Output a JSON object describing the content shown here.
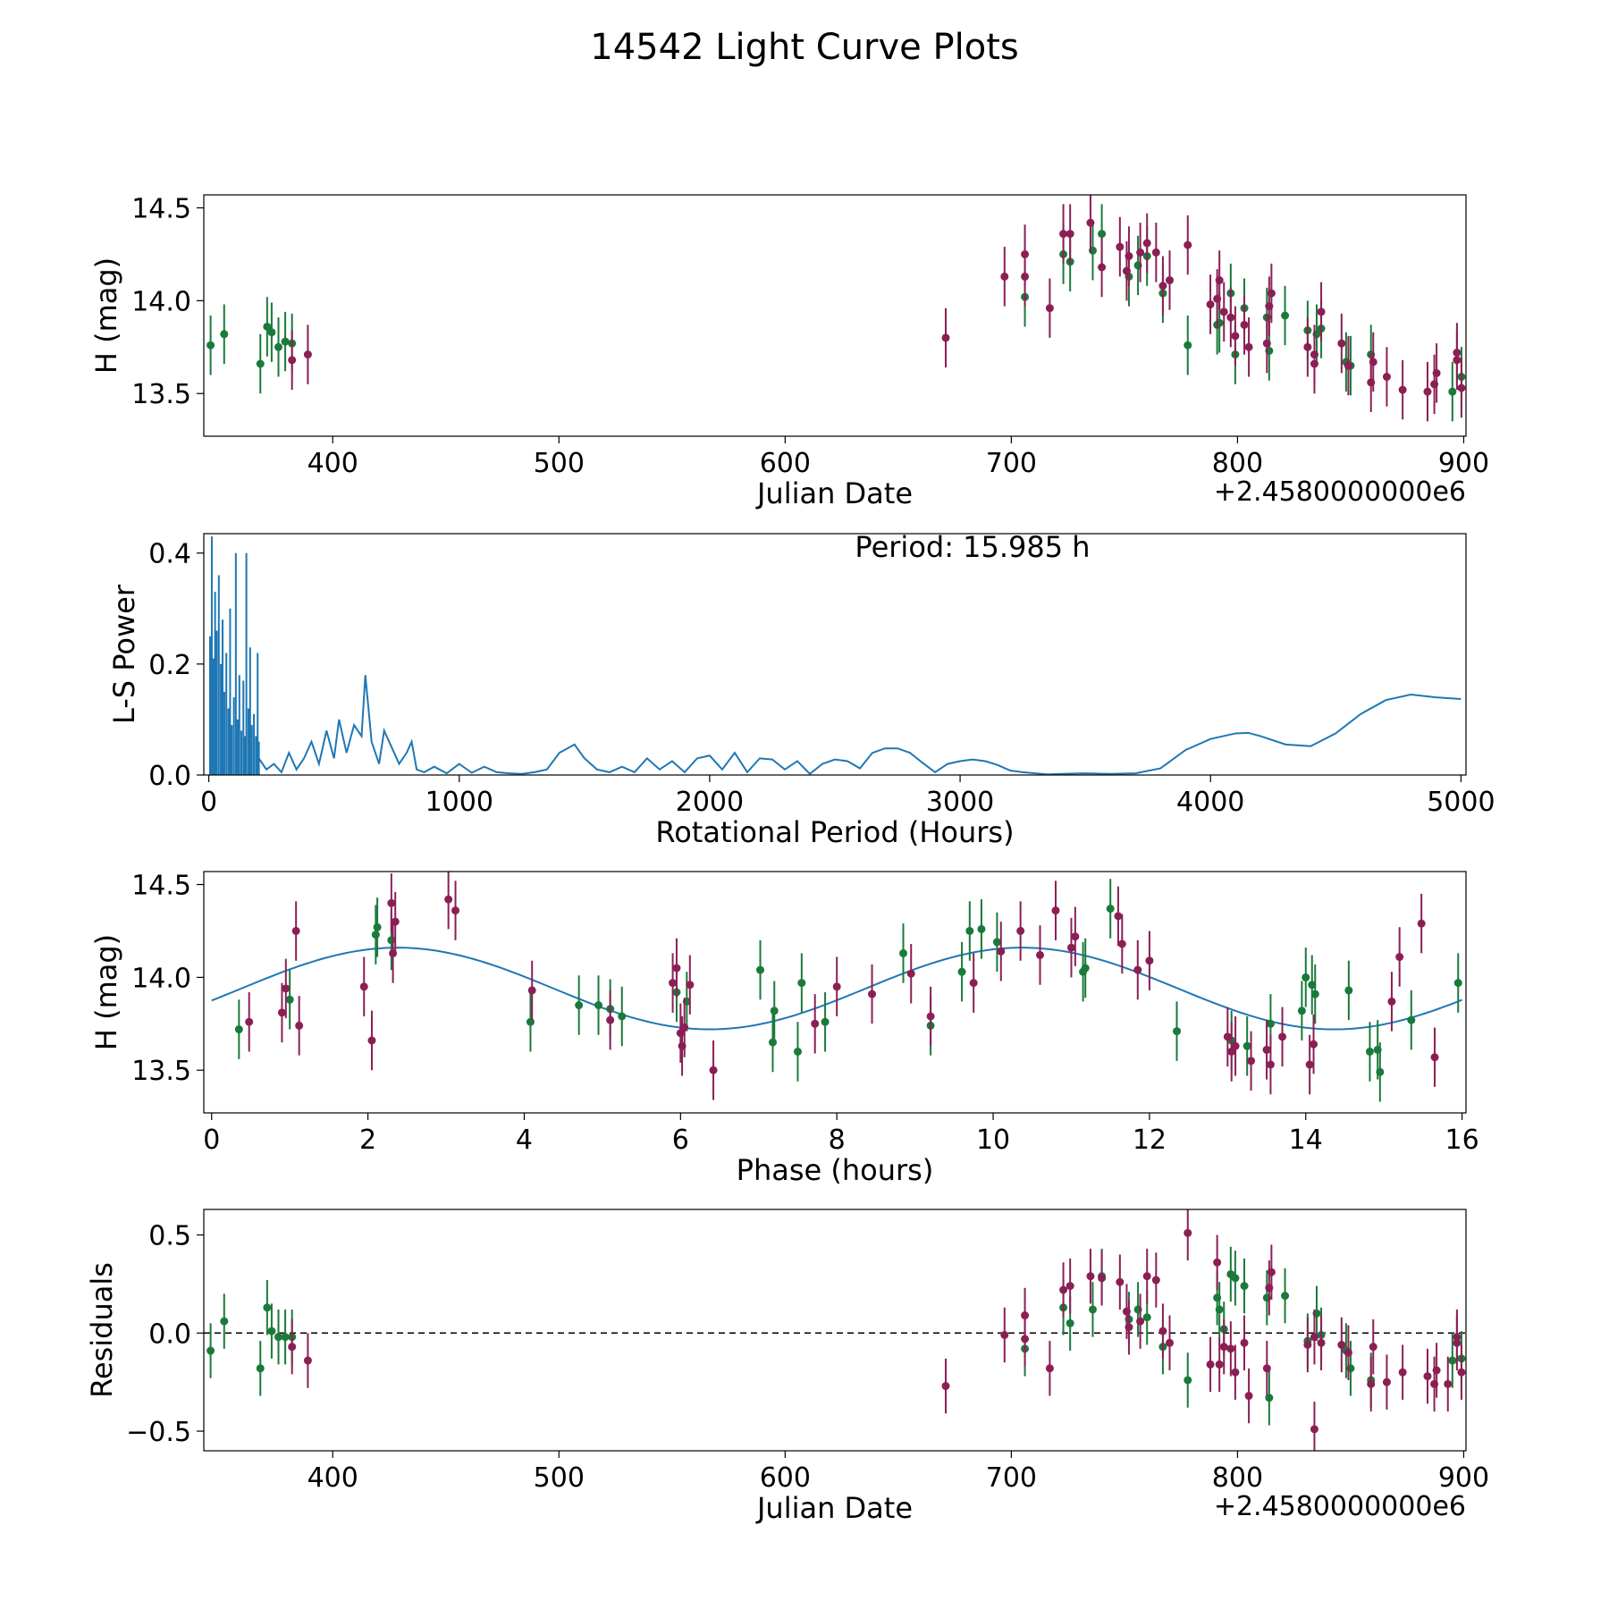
{
  "figure": {
    "title": "14542 Light Curve Plots",
    "colors": {
      "green": "#1a7a3a",
      "purple": "#8b1f55",
      "line": "#1f77b4",
      "axis": "#000000"
    }
  },
  "chart_data": [
    {
      "id": "lightcurve",
      "type": "scatter",
      "xlabel": "Julian Date",
      "ylabel": "H (mag)",
      "offset_text": "+2.4580000000e6",
      "xlim": [
        343,
        901
      ],
      "ylim": [
        13.27,
        14.57
      ],
      "xticks": [
        400,
        500,
        600,
        700,
        800,
        900
      ],
      "yticks": [
        13.5,
        14.0,
        14.5
      ],
      "ytick_labels": [
        "13.5",
        "14.0",
        "14.5"
      ],
      "error": 0.16,
      "series": [
        {
          "name": "green",
          "color": "#1a7a3a",
          "x": [
            346,
            352,
            368,
            371,
            373,
            376,
            379,
            382,
            706,
            723,
            726,
            736,
            740,
            752,
            756,
            760,
            767,
            778,
            791,
            792,
            797,
            799,
            803,
            813,
            814,
            821,
            831,
            835,
            837,
            848,
            850,
            859,
            895,
            899
          ],
          "y": [
            13.76,
            13.82,
            13.66,
            13.86,
            13.83,
            13.75,
            13.78,
            13.77,
            14.02,
            14.25,
            14.21,
            14.27,
            14.36,
            14.13,
            14.19,
            14.24,
            14.04,
            13.76,
            13.87,
            13.88,
            14.04,
            13.71,
            13.96,
            13.91,
            13.73,
            13.92,
            13.84,
            13.82,
            13.85,
            13.67,
            13.65,
            13.71,
            13.51,
            13.59
          ]
        },
        {
          "name": "purple",
          "color": "#8b1f55",
          "x": [
            382,
            389,
            671,
            697,
            706,
            706,
            717,
            723,
            726,
            735,
            740,
            748,
            751,
            752,
            757,
            760,
            764,
            767,
            770,
            778,
            788,
            791,
            792,
            794,
            797,
            799,
            803,
            805,
            813,
            814,
            815,
            831,
            834,
            834,
            837,
            846,
            849,
            859,
            860,
            866,
            873,
            884,
            887,
            888,
            897,
            897,
            899
          ],
          "y": [
            13.68,
            13.71,
            13.8,
            14.13,
            14.13,
            14.25,
            13.96,
            14.36,
            14.36,
            14.42,
            14.18,
            14.29,
            14.16,
            14.24,
            14.26,
            14.31,
            14.26,
            14.08,
            14.11,
            14.3,
            13.98,
            14.01,
            14.11,
            13.94,
            13.91,
            13.81,
            13.87,
            13.75,
            13.77,
            13.97,
            14.04,
            13.75,
            13.66,
            13.71,
            13.94,
            13.77,
            13.65,
            13.56,
            13.67,
            13.59,
            13.52,
            13.51,
            13.55,
            13.61,
            13.68,
            13.72,
            13.53
          ]
        }
      ]
    },
    {
      "id": "periodogram",
      "type": "line",
      "xlabel": "Rotational Period (Hours)",
      "ylabel": "L-S Power",
      "annotation": "Period: 15.985 h",
      "xlim": [
        -20,
        5020
      ],
      "ylim": [
        0,
        0.435
      ],
      "xticks": [
        0,
        1000,
        2000,
        3000,
        4000,
        5000
      ],
      "yticks": [
        0.0,
        0.2,
        0.4
      ],
      "ytick_labels": [
        "0.0",
        "0.2",
        "0.4"
      ],
      "peak_x": [
        5,
        12,
        18,
        25,
        32,
        40,
        48,
        55,
        62,
        70,
        78,
        85,
        92,
        100,
        108,
        115,
        122,
        130,
        138,
        145,
        150,
        158,
        165,
        172,
        180,
        188,
        195,
        200
      ],
      "peak_y": [
        0.25,
        0.43,
        0.21,
        0.33,
        0.26,
        0.36,
        0.2,
        0.28,
        0.15,
        0.22,
        0.12,
        0.3,
        0.09,
        0.14,
        0.4,
        0.1,
        0.18,
        0.08,
        0.17,
        0.07,
        0.4,
        0.12,
        0.23,
        0.09,
        0.11,
        0.07,
        0.22,
        0.06
      ],
      "curve_x": [
        200,
        230,
        260,
        290,
        320,
        350,
        380,
        410,
        440,
        470,
        500,
        520,
        550,
        580,
        610,
        625,
        650,
        680,
        700,
        730,
        760,
        790,
        810,
        830,
        860,
        900,
        950,
        1000,
        1050,
        1100,
        1150,
        1200,
        1250,
        1300,
        1350,
        1400,
        1420,
        1460,
        1500,
        1550,
        1600,
        1650,
        1700,
        1750,
        1800,
        1850,
        1900,
        1950,
        2000,
        2050,
        2100,
        2150,
        2200,
        2250,
        2300,
        2350,
        2400,
        2450,
        2500,
        2550,
        2600,
        2650,
        2700,
        2750,
        2800,
        2850,
        2900,
        2950,
        3000,
        3050,
        3100,
        3150,
        3200,
        3250,
        3300,
        3350,
        3400,
        3500,
        3600,
        3700,
        3800,
        3900,
        4000,
        4100,
        4150,
        4200,
        4300,
        4400,
        4500,
        4600,
        4700,
        4800,
        4900,
        5000
      ],
      "curve_y": [
        0.03,
        0.01,
        0.02,
        0.005,
        0.04,
        0.01,
        0.03,
        0.06,
        0.02,
        0.08,
        0.03,
        0.1,
        0.04,
        0.09,
        0.07,
        0.18,
        0.06,
        0.02,
        0.08,
        0.05,
        0.02,
        0.04,
        0.06,
        0.01,
        0.005,
        0.015,
        0.003,
        0.02,
        0.004,
        0.015,
        0.005,
        0.003,
        0.002,
        0.005,
        0.01,
        0.04,
        0.045,
        0.055,
        0.03,
        0.01,
        0.005,
        0.015,
        0.005,
        0.03,
        0.01,
        0.025,
        0.005,
        0.03,
        0.035,
        0.01,
        0.04,
        0.005,
        0.03,
        0.028,
        0.01,
        0.025,
        0.002,
        0.02,
        0.028,
        0.025,
        0.012,
        0.04,
        0.048,
        0.048,
        0.04,
        0.022,
        0.005,
        0.02,
        0.025,
        0.028,
        0.025,
        0.018,
        0.008,
        0.005,
        0.003,
        0.001,
        0.002,
        0.003,
        0.002,
        0.003,
        0.012,
        0.045,
        0.065,
        0.075,
        0.076,
        0.07,
        0.055,
        0.052,
        0.075,
        0.11,
        0.135,
        0.145,
        0.14,
        0.137
      ]
    },
    {
      "id": "phase",
      "type": "scatter",
      "xlabel": "Phase (hours)",
      "ylabel": "H (mag)",
      "xlim": [
        -0.1,
        16.05
      ],
      "ylim": [
        13.27,
        14.57
      ],
      "xticks": [
        0,
        2,
        4,
        6,
        8,
        10,
        12,
        14,
        16
      ],
      "yticks": [
        13.5,
        14.0,
        14.5
      ],
      "ytick_labels": [
        "13.5",
        "14.0",
        "14.5"
      ],
      "error": 0.16,
      "model": {
        "mean": 13.94,
        "amplitude": 0.22,
        "period": 7.99,
        "phase0": 0.38
      },
      "series": [
        {
          "name": "green",
          "color": "#1a7a3a",
          "x": [
            0.35,
            1.0,
            2.1,
            2.12,
            2.3,
            4.08,
            4.7,
            4.95,
            5.1,
            5.25,
            5.95,
            6.08,
            7.02,
            7.18,
            7.2,
            7.5,
            7.55,
            7.85,
            8.85,
            9.2,
            9.6,
            9.7,
            9.85,
            10.05,
            11.15,
            11.18,
            11.5,
            12.35,
            13.05,
            13.25,
            13.55,
            13.95,
            14.0,
            14.08,
            14.12,
            14.55,
            14.82,
            14.92,
            14.95,
            15.35,
            15.95
          ],
          "y": [
            13.72,
            13.88,
            14.23,
            14.27,
            14.2,
            13.76,
            13.85,
            13.85,
            13.83,
            13.79,
            13.92,
            13.87,
            14.04,
            13.65,
            13.82,
            13.6,
            13.97,
            13.76,
            14.13,
            13.74,
            14.03,
            14.25,
            14.26,
            14.19,
            14.03,
            14.05,
            14.37,
            13.71,
            13.66,
            13.63,
            13.75,
            13.82,
            14.0,
            13.96,
            13.91,
            13.93,
            13.6,
            13.61,
            13.49,
            13.77,
            13.97
          ]
        },
        {
          "name": "purple",
          "color": "#8b1f55",
          "x": [
            0.48,
            0.9,
            0.95,
            1.08,
            1.12,
            1.95,
            2.05,
            2.3,
            2.32,
            2.35,
            3.03,
            3.12,
            4.1,
            5.1,
            5.9,
            5.95,
            6.0,
            6.02,
            6.05,
            6.12,
            6.42,
            7.72,
            8.0,
            8.45,
            8.95,
            9.2,
            9.75,
            10.1,
            10.35,
            10.6,
            10.8,
            11.0,
            11.05,
            11.6,
            11.65,
            11.85,
            12.0,
            13.0,
            13.05,
            13.1,
            13.3,
            13.5,
            13.55,
            13.7,
            14.05,
            14.1,
            15.1,
            15.2,
            15.48,
            15.65
          ],
          "y": [
            13.76,
            13.81,
            13.94,
            14.25,
            13.74,
            13.95,
            13.66,
            14.4,
            14.13,
            14.3,
            14.42,
            14.36,
            13.93,
            13.77,
            13.97,
            14.05,
            13.7,
            13.63,
            13.73,
            13.96,
            13.5,
            13.75,
            13.95,
            13.91,
            14.02,
            13.79,
            13.97,
            14.14,
            14.25,
            14.12,
            14.36,
            14.16,
            14.22,
            14.33,
            14.18,
            14.04,
            14.09,
            13.68,
            13.6,
            13.63,
            13.55,
            13.61,
            13.53,
            13.68,
            13.53,
            13.64,
            13.87,
            14.11,
            14.29,
            13.57
          ]
        }
      ]
    },
    {
      "id": "residuals",
      "type": "scatter",
      "xlabel": "Julian Date",
      "ylabel": "Residuals",
      "offset_text": "+2.4580000000e6",
      "xlim": [
        343,
        901
      ],
      "ylim": [
        -0.6,
        0.63
      ],
      "xticks": [
        400,
        500,
        600,
        700,
        800,
        900
      ],
      "yticks": [
        -0.5,
        0.0,
        0.5
      ],
      "ytick_labels": [
        "−0.5",
        "0.0",
        "0.5"
      ],
      "error": 0.14,
      "zero_line": true,
      "series": [
        {
          "name": "green",
          "color": "#1a7a3a",
          "x": [
            346,
            352,
            368,
            371,
            373,
            376,
            379,
            382,
            706,
            723,
            726,
            736,
            740,
            752,
            756,
            760,
            767,
            778,
            791,
            792,
            794,
            797,
            799,
            803,
            813,
            814,
            821,
            831,
            835,
            837,
            848,
            850,
            859,
            895,
            899
          ],
          "y": [
            -0.09,
            0.06,
            -0.18,
            0.13,
            0.01,
            -0.02,
            -0.02,
            -0.02,
            -0.08,
            0.13,
            0.05,
            0.12,
            0.29,
            0.07,
            0.12,
            0.08,
            -0.07,
            -0.24,
            0.18,
            0.12,
            0.02,
            0.3,
            0.28,
            0.24,
            0.18,
            -0.33,
            0.19,
            -0.04,
            0.1,
            -0.01,
            -0.09,
            -0.18,
            -0.24,
            -0.14,
            -0.13
          ]
        },
        {
          "name": "purple",
          "color": "#8b1f55",
          "x": [
            382,
            389,
            671,
            697,
            706,
            706,
            717,
            723,
            726,
            735,
            740,
            748,
            751,
            752,
            757,
            760,
            764,
            767,
            770,
            778,
            788,
            791,
            792,
            794,
            797,
            799,
            803,
            805,
            813,
            814,
            815,
            831,
            834,
            834,
            837,
            846,
            849,
            859,
            860,
            866,
            873,
            884,
            887,
            888,
            893,
            897,
            897,
            899
          ],
          "y": [
            -0.07,
            -0.14,
            -0.27,
            -0.01,
            0.09,
            -0.03,
            -0.18,
            0.22,
            0.24,
            0.29,
            0.28,
            0.26,
            0.11,
            0.03,
            0.06,
            0.29,
            0.27,
            0.01,
            -0.05,
            0.51,
            -0.16,
            0.36,
            -0.16,
            -0.07,
            -0.08,
            -0.2,
            -0.05,
            -0.32,
            -0.18,
            0.23,
            0.31,
            -0.06,
            -0.49,
            -0.02,
            -0.05,
            -0.06,
            -0.1,
            -0.26,
            -0.07,
            -0.25,
            -0.2,
            -0.22,
            -0.26,
            -0.19,
            -0.26,
            -0.02,
            -0.05,
            -0.2
          ]
        }
      ]
    }
  ]
}
